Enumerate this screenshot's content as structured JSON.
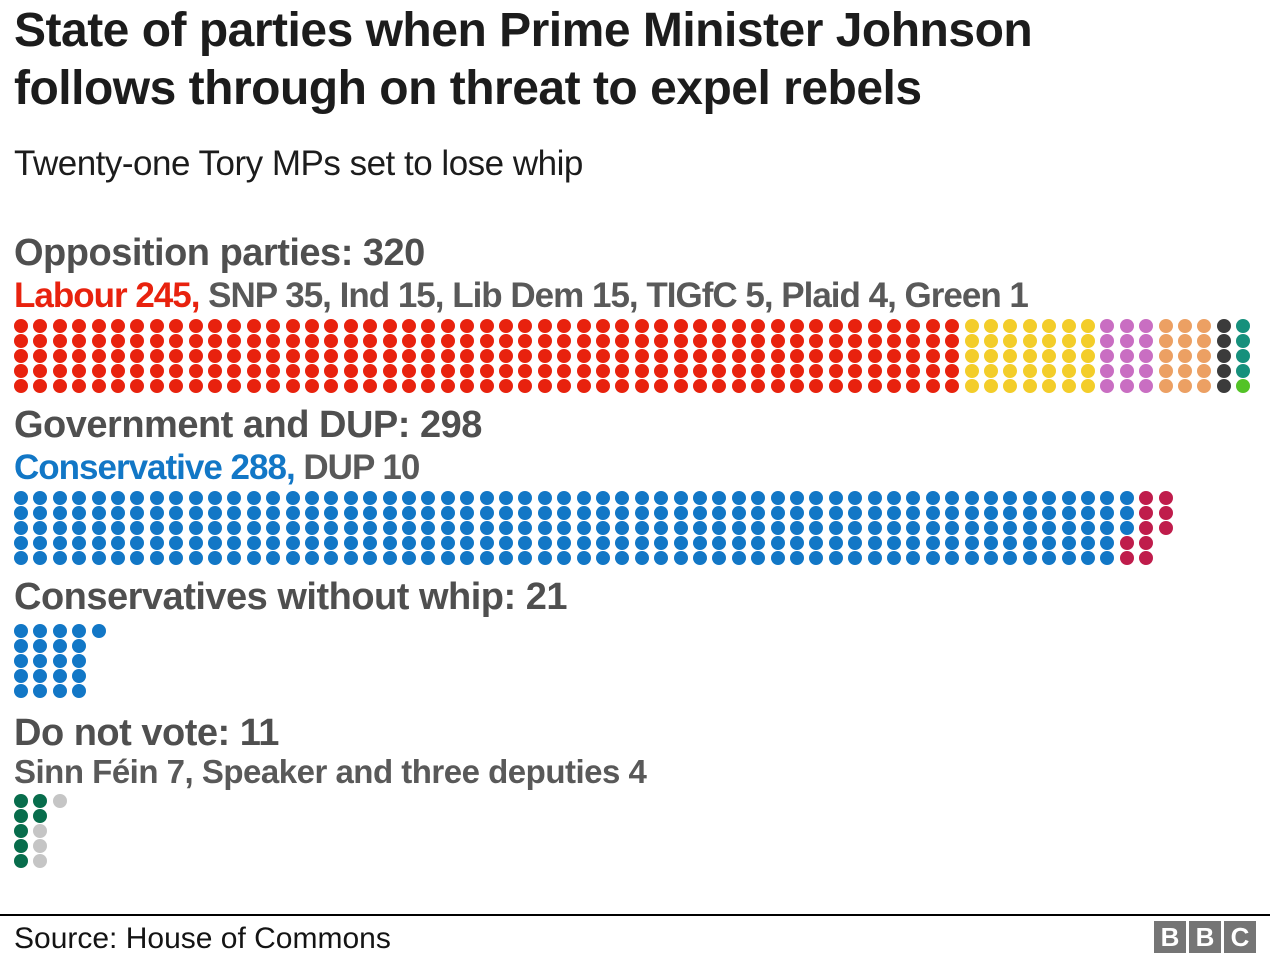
{
  "page": {
    "title_line1": "State of parties when Prime Minister Johnson",
    "title_line2": "follows through on threat to expel rebels",
    "subtitle": "Twenty-one Tory MPs set to lose whip",
    "source": "Source: House of Commons",
    "logo_letters": [
      "B",
      "B",
      "C"
    ]
  },
  "colors": {
    "title_text": "#1c1c1c",
    "heading_text": "#4f4f4f",
    "labour_red": "#e8220e",
    "conservative_blue": "#1277c6",
    "footer_rule": "#000000",
    "logo_gray": "#757575"
  },
  "chart_data": {
    "type": "waffle",
    "rows_per_column": 5,
    "legend_position": "inline-above-dots",
    "sections": [
      {
        "id": "opposition",
        "heading": "Opposition parties: 320",
        "total": 320,
        "label_segments": [
          {
            "text": "Labour 245,",
            "color": "#e8220e"
          },
          {
            "text": " SNP 35, Ind 15, Lib Dem 15, TIGfC 5, Plaid 4, Green 1",
            "color": "#595959"
          }
        ],
        "parties": [
          {
            "name": "Labour",
            "seats": 245,
            "color": "#e8220e"
          },
          {
            "name": "SNP",
            "seats": 35,
            "color": "#f3cd2a"
          },
          {
            "name": "Ind",
            "seats": 15,
            "color": "#c96ec2"
          },
          {
            "name": "Lib Dem",
            "seats": 15,
            "color": "#eca063"
          },
          {
            "name": "TIGfC",
            "seats": 5,
            "color": "#3b3b3b"
          },
          {
            "name": "Plaid",
            "seats": 4,
            "color": "#16907c"
          },
          {
            "name": "Green",
            "seats": 1,
            "color": "#53c327"
          }
        ]
      },
      {
        "id": "government",
        "heading": "Government and DUP: 298",
        "total": 298,
        "label_segments": [
          {
            "text": "Conservative 288,",
            "color": "#1277c6"
          },
          {
            "text": " DUP 10",
            "color": "#595959"
          }
        ],
        "parties": [
          {
            "name": "Conservative",
            "seats": 288,
            "color": "#1277c6"
          },
          {
            "name": "DUP",
            "seats": 10,
            "color": "#bf1c4b"
          }
        ]
      },
      {
        "id": "without-whip",
        "heading": "Conservatives without whip: 21",
        "total": 21,
        "label_segments": [],
        "parties": [
          {
            "name": "Conservatives without whip",
            "seats": 21,
            "color": "#1277c6"
          }
        ]
      },
      {
        "id": "do-not-vote",
        "heading": "Do not vote: 11",
        "total": 11,
        "label_segments": [
          {
            "text": "Sinn Féin 7, Speaker and three deputies 4",
            "color": "#595959"
          }
        ],
        "parties": [
          {
            "name": "Sinn Féin",
            "seats": 7,
            "color": "#086d4c"
          },
          {
            "name": "Speaker and three deputies",
            "seats": 4,
            "color": "#c5c5c5"
          }
        ]
      }
    ]
  }
}
